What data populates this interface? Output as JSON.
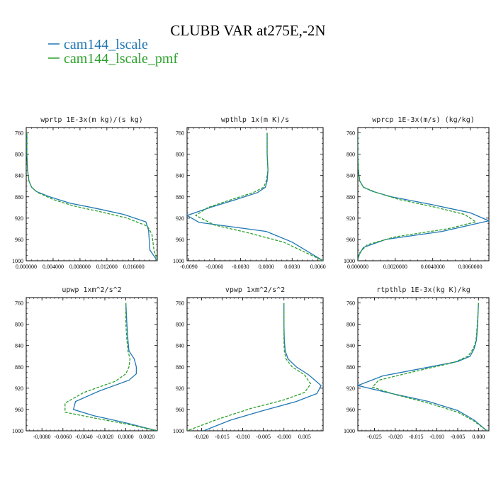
{
  "figure": {
    "title": "CLUBB VAR at275E,-2N",
    "legend": [
      {
        "label": "cam144_lscale",
        "color": "#1f77b4"
      },
      {
        "label": "cam144_lscale_pmf",
        "color": "#2ca02c"
      }
    ]
  },
  "chart_data": [
    {
      "type": "line",
      "title": "wprtp  1E-3x(m kg)/(s kg)",
      "xlim": [
        0,
        0.0195
      ],
      "ylim": [
        1000,
        750
      ],
      "y_reversed": true,
      "xticks": [
        "0.000000",
        "0.004000",
        "0.008000",
        "0.012000",
        "0.016000"
      ],
      "xtick_values": [
        0,
        0.004,
        0.008,
        0.012,
        0.016
      ],
      "yticks": [
        760,
        800,
        840,
        880,
        920,
        960,
        1000
      ],
      "series": [
        {
          "name": "cam144_lscale",
          "x": [
            0.0001,
            0.0001,
            0.0002,
            0.0004,
            0.0008,
            0.0015,
            0.0035,
            0.0065,
            0.0105,
            0.0145,
            0.0178,
            0.0182,
            0.0184,
            0.0195
          ],
          "y": [
            760,
            800,
            830,
            850,
            862,
            870,
            880,
            892,
            902,
            913,
            927,
            943,
            980,
            1000
          ]
        },
        {
          "name": "cam144_lscale_pmf",
          "x": [
            0.0001,
            0.0001,
            0.0002,
            0.0004,
            0.0008,
            0.0017,
            0.004,
            0.007,
            0.011,
            0.015,
            0.018,
            0.0187,
            0.019,
            0.0195
          ],
          "y": [
            760,
            800,
            830,
            850,
            862,
            872,
            885,
            897,
            908,
            920,
            935,
            950,
            980,
            1000
          ]
        }
      ]
    },
    {
      "type": "line",
      "title": "wpthlp  1x(m K)/s",
      "xlim": [
        -0.0092,
        0.0066
      ],
      "ylim": [
        1000,
        750
      ],
      "y_reversed": true,
      "xticks": [
        "-0.0090",
        "-0.0060",
        "-0.0030",
        "0.0000",
        "0.0030",
        "0.0060"
      ],
      "xtick_values": [
        -0.009,
        -0.006,
        -0.003,
        0,
        0.003,
        0.006
      ],
      "yticks": [
        760,
        800,
        840,
        880,
        920,
        960,
        1000
      ],
      "series": [
        {
          "name": "cam144_lscale",
          "x": [
            0.0001,
            0.0001,
            0.0002,
            0.0001,
            -0.0001,
            -0.001,
            -0.0035,
            -0.0065,
            -0.0092,
            -0.0078,
            0.0,
            0.003,
            0.0066
          ],
          "y": [
            760,
            800,
            830,
            850,
            862,
            872,
            885,
            900,
            915,
            928,
            945,
            965,
            1000
          ]
        },
        {
          "name": "cam144_lscale_pmf",
          "x": [
            0.0001,
            0.0001,
            0.0002,
            0.0,
            -0.0003,
            -0.0015,
            -0.004,
            -0.0068,
            -0.0082,
            -0.006,
            -0.002,
            0.002,
            0.0066
          ],
          "y": [
            760,
            800,
            830,
            850,
            862,
            872,
            885,
            900,
            915,
            933,
            948,
            965,
            1000
          ]
        }
      ]
    },
    {
      "type": "line",
      "title": "wprcp  1E-3x(m/s) (kg/kg)",
      "xlim": [
        0,
        0.007
      ],
      "ylim": [
        1000,
        750
      ],
      "y_reversed": true,
      "xticks": [
        "0.000000",
        "0.0020000",
        "0.0040000",
        "0.0060000"
      ],
      "xtick_values": [
        0,
        0.002,
        0.004,
        0.006
      ],
      "yticks": [
        760,
        800,
        840,
        880,
        920,
        960,
        1000
      ],
      "series": [
        {
          "name": "cam144_lscale",
          "x": [
            0.0,
            0.0,
            3e-05,
            0.0001,
            0.0003,
            0.0008,
            0.0018,
            0.004,
            0.006,
            0.007,
            0.0045,
            0.0015,
            0.0003,
            5e-05,
            0.0
          ],
          "y": [
            760,
            800,
            830,
            850,
            862,
            870,
            880,
            895,
            910,
            925,
            945,
            960,
            975,
            990,
            1000
          ]
        },
        {
          "name": "cam144_lscale_pmf",
          "x": [
            0.0,
            0.0,
            3e-05,
            0.0001,
            0.0003,
            0.001,
            0.0022,
            0.0042,
            0.0057,
            0.0063,
            0.0048,
            0.002,
            0.0005,
            0.0001,
            0.0
          ],
          "y": [
            760,
            800,
            830,
            850,
            862,
            872,
            885,
            900,
            913,
            927,
            940,
            955,
            970,
            985,
            1000
          ]
        }
      ]
    },
    {
      "type": "line",
      "title": "upwp  1xm^2/s^2",
      "xlim": [
        -0.0095,
        0.003
      ],
      "ylim": [
        1000,
        750
      ],
      "y_reversed": true,
      "xticks": [
        "-0.0080",
        "-0.0060",
        "-0.0040",
        "-0.0020",
        "0.0000",
        "0.0020"
      ],
      "xtick_values": [
        -0.008,
        -0.006,
        -0.004,
        -0.002,
        0,
        0.002
      ],
      "yticks": [
        760,
        800,
        840,
        880,
        920,
        960,
        1000
      ],
      "series": [
        {
          "name": "cam144_lscale",
          "x": [
            0.0,
            0.0001,
            0.0002,
            0.0003,
            0.0008,
            0.001,
            0.001,
            0.0003,
            -0.0025,
            -0.0048,
            -0.005,
            -0.003,
            0.0,
            0.003
          ],
          "y": [
            760,
            800,
            830,
            850,
            865,
            880,
            893,
            905,
            925,
            945,
            960,
            972,
            985,
            1000
          ]
        },
        {
          "name": "cam144_lscale_pmf",
          "x": [
            0.0,
            0.0,
            0.0001,
            0.0002,
            0.0004,
            0.0003,
            0.0,
            -0.001,
            -0.004,
            -0.0058,
            -0.0058,
            -0.003,
            0.0,
            0.003
          ],
          "y": [
            760,
            800,
            830,
            850,
            865,
            880,
            893,
            907,
            928,
            948,
            965,
            976,
            987,
            1000
          ]
        }
      ]
    },
    {
      "type": "line",
      "title": "vpwp  1xm^2/s^2",
      "xlim": [
        -0.0235,
        0.0095
      ],
      "ylim": [
        1000,
        750
      ],
      "y_reversed": true,
      "xticks": [
        "-0.020",
        "-0.015",
        "-0.010",
        "-0.005",
        "-0.000",
        "0.005"
      ],
      "xtick_values": [
        -0.02,
        -0.015,
        -0.01,
        -0.005,
        0,
        0.005
      ],
      "yticks": [
        760,
        800,
        840,
        880,
        920,
        960,
        1000
      ],
      "series": [
        {
          "name": "cam144_lscale",
          "x": [
            0.0,
            0.0,
            0.0001,
            0.0003,
            0.001,
            0.003,
            0.006,
            0.009,
            0.008,
            0.003,
            -0.005,
            -0.013,
            -0.0195
          ],
          "y": [
            760,
            800,
            830,
            850,
            865,
            880,
            895,
            915,
            930,
            945,
            962,
            980,
            1000
          ]
        },
        {
          "name": "cam144_lscale_pmf",
          "x": [
            0.0,
            0.0,
            0.0,
            0.0001,
            0.0005,
            0.002,
            0.005,
            0.0065,
            0.005,
            0.0,
            -0.008,
            -0.016,
            -0.0235
          ],
          "y": [
            760,
            800,
            830,
            850,
            865,
            880,
            895,
            912,
            928,
            942,
            958,
            978,
            1000
          ]
        }
      ]
    },
    {
      "type": "line",
      "title": "rtpthlp  1E-3x(kg K)/kg",
      "xlim": [
        -0.029,
        0.0025
      ],
      "ylim": [
        1000,
        750
      ],
      "y_reversed": true,
      "xticks": [
        "-0.025",
        "-0.020",
        "-0.015",
        "-0.010",
        "-0.005",
        "0.000"
      ],
      "xtick_values": [
        -0.025,
        -0.02,
        -0.015,
        -0.01,
        -0.005,
        0
      ],
      "yticks": [
        760,
        800,
        840,
        880,
        920,
        960,
        1000
      ],
      "series": [
        {
          "name": "cam144_lscale",
          "x": [
            0.0,
            -0.0002,
            -0.0005,
            -0.001,
            -0.002,
            -0.005,
            -0.013,
            -0.023,
            -0.029,
            -0.022,
            -0.012,
            -0.005,
            -0.001,
            0.002
          ],
          "y": [
            760,
            800,
            830,
            845,
            860,
            870,
            882,
            897,
            915,
            928,
            945,
            962,
            980,
            1000
          ]
        },
        {
          "name": "cam144_lscale_pmf",
          "x": [
            0.0,
            -0.0003,
            -0.0006,
            -0.0012,
            -0.0025,
            -0.006,
            -0.015,
            -0.024,
            -0.0255,
            -0.02,
            -0.012,
            -0.005,
            -0.001,
            0.002
          ],
          "y": [
            760,
            800,
            830,
            845,
            860,
            872,
            888,
            905,
            918,
            932,
            948,
            965,
            982,
            1000
          ]
        }
      ]
    }
  ]
}
